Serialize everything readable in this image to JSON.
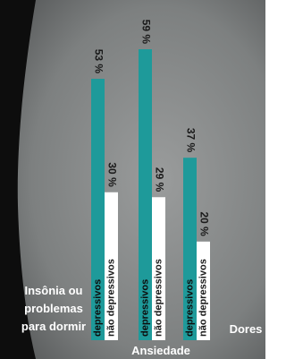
{
  "chart_data": {
    "type": "bar",
    "categories": [
      "Insônia ou\nproblemas\npara dormir",
      "Ansiedade",
      "Dores"
    ],
    "series": [
      {
        "name": "depressivos",
        "color": "#1e9a9a",
        "values": [
          53,
          59,
          37
        ],
        "value_labels": [
          "53 %",
          "59 %",
          "37 %"
        ]
      },
      {
        "name": "não depressivos",
        "color": "#ffffff",
        "values": [
          30,
          29,
          20
        ],
        "value_labels": [
          "30 %",
          "29 %",
          "20 %"
        ]
      }
    ]
  }
}
